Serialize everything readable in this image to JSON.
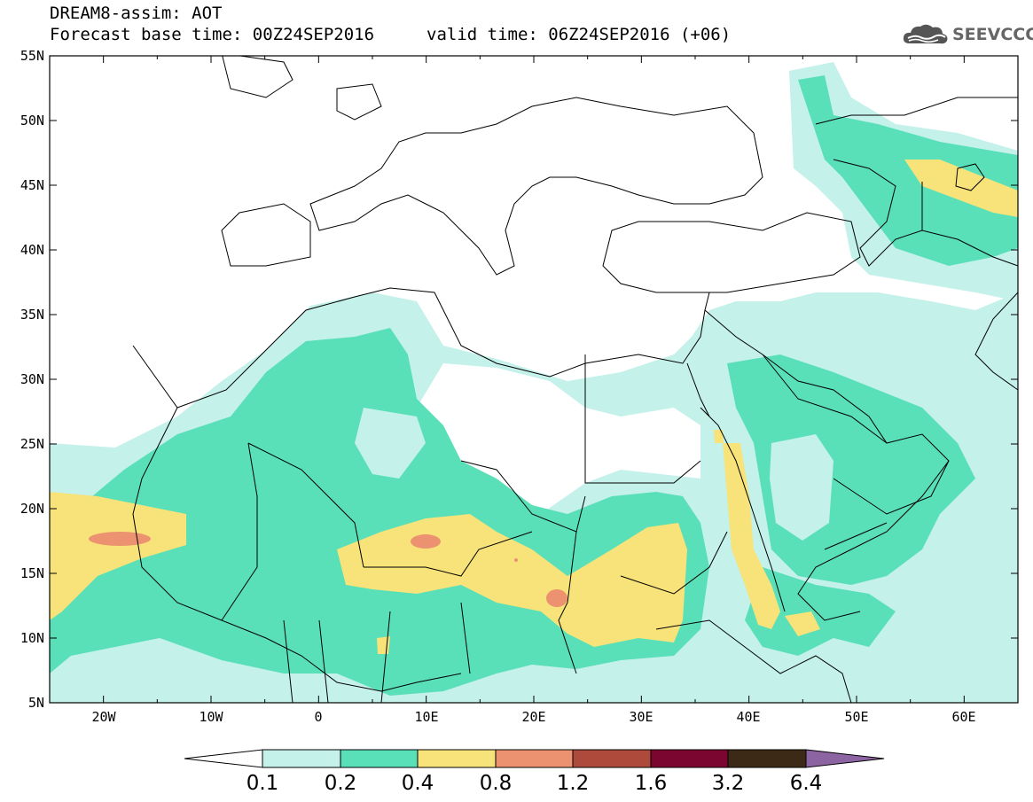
{
  "header": {
    "title": "DREAM8-assim: AOT",
    "base_time": "Forecast base time: 00Z24SEP2016",
    "valid_time": "valid time: 06Z24SEP2016 (+06)"
  },
  "logo": {
    "text": "SEEVCCC",
    "icon": "cloud-icon"
  },
  "map": {
    "extent": {
      "lon": [
        -25,
        65
      ],
      "lat": [
        5,
        55
      ]
    },
    "lat_labels": [
      "55N",
      "50N",
      "45N",
      "40N",
      "35N",
      "30N",
      "25N",
      "20N",
      "15N",
      "10N",
      "5N"
    ],
    "lon_labels": [
      "20W",
      "10W",
      "0",
      "10E",
      "20E",
      "30E",
      "40E",
      "50E",
      "60E"
    ]
  },
  "colorbar": {
    "levels": [
      "0.1",
      "0.2",
      "0.4",
      "0.8",
      "1.2",
      "1.6",
      "3.2",
      "6.4"
    ],
    "colors": [
      "#ffffff",
      "#c4f1ea",
      "#5ae0b8",
      "#f7e379",
      "#ec9270",
      "#ad4a3c",
      "#7b0630",
      "#3c2a16",
      "#8d64a2"
    ]
  }
}
